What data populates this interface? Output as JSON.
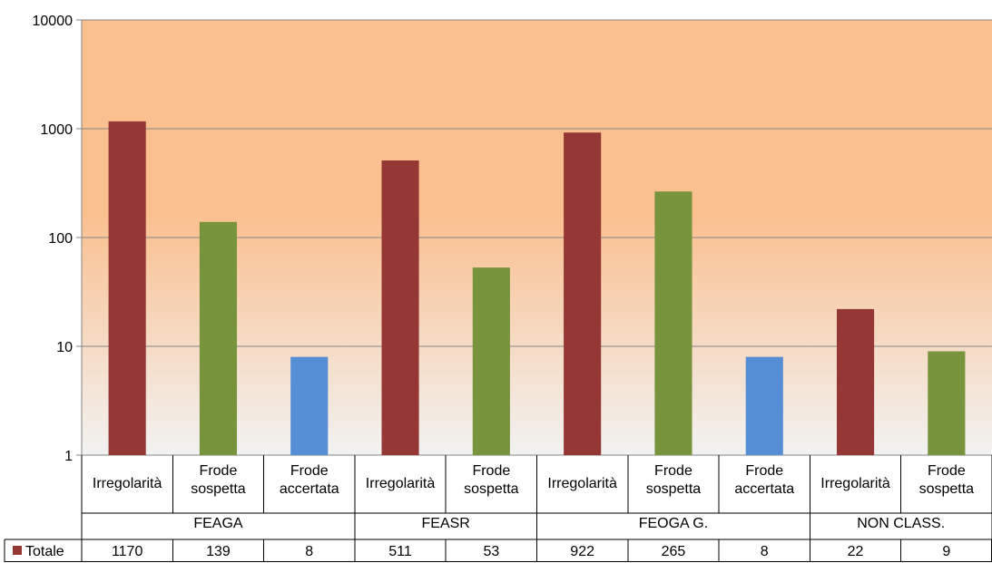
{
  "chart_data": {
    "type": "bar",
    "scale": "log",
    "ylim": [
      1,
      10000
    ],
    "yticks": [
      "1",
      "10",
      "100",
      "1000",
      "10000"
    ],
    "grid": true,
    "groups": [
      "FEAGA",
      "FEASR",
      "FEOGA G.",
      "NON CLASS."
    ],
    "categories": [
      {
        "group": "FEAGA",
        "label": "Irregolarità",
        "value": 1170,
        "kind": "irregolarita"
      },
      {
        "group": "FEAGA",
        "label": "Frode sospetta",
        "value": 139,
        "kind": "sospetta"
      },
      {
        "group": "FEAGA",
        "label": "Frode accertata",
        "value": 8,
        "kind": "accertata"
      },
      {
        "group": "FEASR",
        "label": "Irregolarità",
        "value": 511,
        "kind": "irregolarita"
      },
      {
        "group": "FEASR",
        "label": "Frode sospetta",
        "value": 53,
        "kind": "sospetta"
      },
      {
        "group": "FEOGA G.",
        "label": "Irregolarità",
        "value": 922,
        "kind": "irregolarita"
      },
      {
        "group": "FEOGA G.",
        "label": "Frode sospetta",
        "value": 265,
        "kind": "sospetta"
      },
      {
        "group": "FEOGA G.",
        "label": "Frode accertata",
        "value": 8,
        "kind": "accertata"
      },
      {
        "group": "NON CLASS.",
        "label": "Irregolarità",
        "value": 22,
        "kind": "irregolarita"
      },
      {
        "group": "NON CLASS.",
        "label": "Frode sospetta",
        "value": 9,
        "kind": "sospetta"
      }
    ],
    "series": [
      {
        "name": "Totale",
        "color": "#953735"
      }
    ],
    "colors": {
      "irregolarita": "#953735",
      "sospetta": "#77933C",
      "accertata": "#558ED5",
      "plot_top": "#FAC090",
      "plot_bottom": "#F2F2F2"
    },
    "data_table": true
  }
}
